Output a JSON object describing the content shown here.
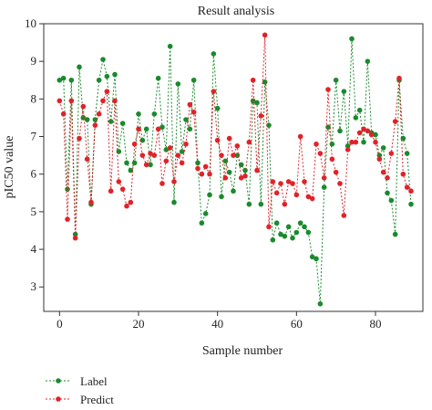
{
  "chart_data": {
    "type": "line",
    "title": "Result analysis",
    "xlabel": "Sample number",
    "ylabel": "pIC50 value",
    "xlim": [
      -4,
      92
    ],
    "ylim": [
      2.35,
      10.0
    ],
    "xticks": [
      0,
      20,
      40,
      60,
      80
    ],
    "yticks": [
      3,
      4,
      5,
      6,
      7,
      8,
      9,
      10
    ],
    "grid": false,
    "legend_position": "bottom-left",
    "series": [
      {
        "name": "Label",
        "color": "#1a8a2e",
        "x": [
          0,
          1,
          2,
          3,
          4,
          5,
          6,
          7,
          8,
          9,
          10,
          11,
          12,
          13,
          14,
          15,
          16,
          17,
          18,
          19,
          20,
          21,
          22,
          23,
          24,
          25,
          26,
          27,
          28,
          29,
          30,
          31,
          32,
          33,
          34,
          35,
          36,
          37,
          38,
          39,
          40,
          41,
          42,
          43,
          44,
          45,
          46,
          47,
          48,
          49,
          50,
          51,
          52,
          53,
          54,
          55,
          56,
          57,
          58,
          59,
          60,
          61,
          62,
          63,
          64,
          65,
          66,
          67,
          68,
          69,
          70,
          71,
          72,
          73,
          74,
          75,
          76,
          77,
          78,
          79,
          80,
          81,
          82,
          83,
          84,
          85,
          86,
          87,
          88,
          89
        ],
        "values": [
          8.5,
          8.55,
          5.6,
          8.5,
          4.4,
          8.85,
          7.5,
          7.45,
          5.2,
          7.45,
          8.5,
          9.05,
          8.6,
          7.4,
          8.65,
          6.6,
          7.35,
          6.3,
          6.1,
          6.3,
          7.6,
          6.9,
          7.2,
          6.25,
          7.6,
          8.55,
          7.25,
          6.65,
          9.4,
          5.25,
          8.4,
          6.6,
          7.45,
          7.2,
          8.5,
          6.3,
          4.7,
          4.95,
          5.45,
          9.2,
          7.75,
          5.4,
          6.35,
          6.05,
          5.55,
          6.5,
          6.25,
          6.1,
          5.2,
          7.95,
          7.9,
          5.2,
          8.45,
          7.3,
          4.25,
          4.7,
          4.4,
          4.35,
          4.6,
          4.3,
          4.45,
          4.7,
          4.6,
          4.45,
          3.8,
          3.75,
          2.55,
          5.65,
          7.25,
          6.8,
          8.5,
          7.15,
          8.2,
          6.75,
          9.6,
          7.5,
          7.7,
          6.85,
          9.0,
          7.1,
          7.05,
          6.5,
          6.7,
          5.5,
          5.3,
          4.4,
          8.5,
          6.95,
          6.55,
          5.2
        ]
      },
      {
        "name": "Predict",
        "color": "#e0232a",
        "x": [
          0,
          1,
          2,
          3,
          4,
          5,
          6,
          7,
          8,
          9,
          10,
          11,
          12,
          13,
          14,
          15,
          16,
          17,
          18,
          19,
          20,
          21,
          22,
          23,
          24,
          25,
          26,
          27,
          28,
          29,
          30,
          31,
          32,
          33,
          34,
          35,
          36,
          37,
          38,
          39,
          40,
          41,
          42,
          43,
          44,
          45,
          46,
          47,
          48,
          49,
          50,
          51,
          52,
          53,
          54,
          55,
          56,
          57,
          58,
          59,
          60,
          61,
          62,
          63,
          64,
          65,
          66,
          67,
          68,
          69,
          70,
          71,
          72,
          73,
          74,
          75,
          76,
          77,
          78,
          79,
          80,
          81,
          82,
          83,
          84,
          85,
          86,
          87,
          88,
          89
        ],
        "values": [
          7.95,
          7.6,
          4.8,
          7.95,
          4.3,
          6.95,
          7.8,
          6.4,
          5.25,
          7.3,
          7.6,
          7.95,
          8.2,
          5.55,
          7.95,
          5.8,
          5.6,
          5.15,
          5.25,
          6.8,
          7.2,
          6.5,
          6.25,
          6.55,
          6.5,
          7.2,
          5.75,
          6.35,
          6.7,
          5.8,
          6.5,
          6.3,
          6.8,
          7.85,
          7.65,
          6.15,
          6.0,
          6.2,
          6.0,
          8.2,
          6.9,
          6.5,
          5.9,
          6.95,
          6.5,
          6.75,
          5.9,
          5.95,
          6.85,
          8.5,
          6.1,
          7.55,
          9.7,
          4.6,
          5.8,
          5.5,
          5.75,
          5.2,
          5.8,
          5.75,
          5.45,
          7.0,
          5.8,
          5.4,
          5.35,
          6.8,
          6.55,
          5.9,
          8.25,
          6.4,
          6.05,
          5.75,
          4.9,
          6.65,
          6.85,
          6.85,
          7.1,
          7.2,
          7.15,
          7.05,
          6.85,
          6.4,
          6.05,
          5.9,
          6.55,
          7.4,
          8.55,
          6.0,
          5.65,
          5.55
        ]
      }
    ]
  }
}
